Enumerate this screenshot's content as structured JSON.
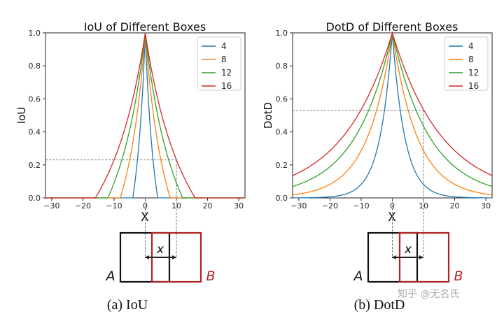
{
  "chart_data": [
    {
      "type": "line",
      "title": "IoU of Different Boxes",
      "ylabel": "IoU",
      "xlabel": "X",
      "xlim": [
        -32,
        32
      ],
      "ylim": [
        0,
        1.0
      ],
      "xticks": [
        "−30",
        "−20",
        "−10",
        "0",
        "10",
        "20",
        "30"
      ],
      "yticks": [
        "0.0",
        "0.2",
        "0.4",
        "0.6",
        "0.8",
        "1.0"
      ],
      "formula": "iou",
      "series": [
        {
          "name": "4",
          "size": 4,
          "color": "#1f77b4"
        },
        {
          "name": "8",
          "size": 8,
          "color": "#ff7f0e"
        },
        {
          "name": "12",
          "size": 12,
          "color": "#2ca02c"
        },
        {
          "name": "16",
          "size": 16,
          "color": "#d62728"
        }
      ],
      "guide": {
        "x": 10,
        "y": 0.23
      },
      "caption": "(a)  IoU"
    },
    {
      "type": "line",
      "title": "DotD of Different Boxes",
      "ylabel": "DotD",
      "xlabel": "X",
      "xlim": [
        -32,
        32
      ],
      "ylim": [
        0,
        1.0
      ],
      "xticks": [
        "−30",
        "−20",
        "−10",
        "0",
        "10",
        "20",
        "30"
      ],
      "yticks": [
        "0.0",
        "0.2",
        "0.4",
        "0.6",
        "0.8",
        "1.0"
      ],
      "formula": "dotd",
      "series": [
        {
          "name": "4",
          "size": 4,
          "color": "#1f77b4"
        },
        {
          "name": "8",
          "size": 8,
          "color": "#ff7f0e"
        },
        {
          "name": "12",
          "size": 12,
          "color": "#2ca02c"
        },
        {
          "name": "16",
          "size": 16,
          "color": "#d62728"
        }
      ],
      "guide": {
        "x": 10,
        "y": 0.53
      },
      "caption": "(b)  DotD"
    }
  ],
  "diagram": {
    "label_a": "A",
    "label_b": "B",
    "label_x": "x",
    "color_a": "#111111",
    "color_b": "#b22222"
  },
  "watermark": "知乎 @无名氏"
}
